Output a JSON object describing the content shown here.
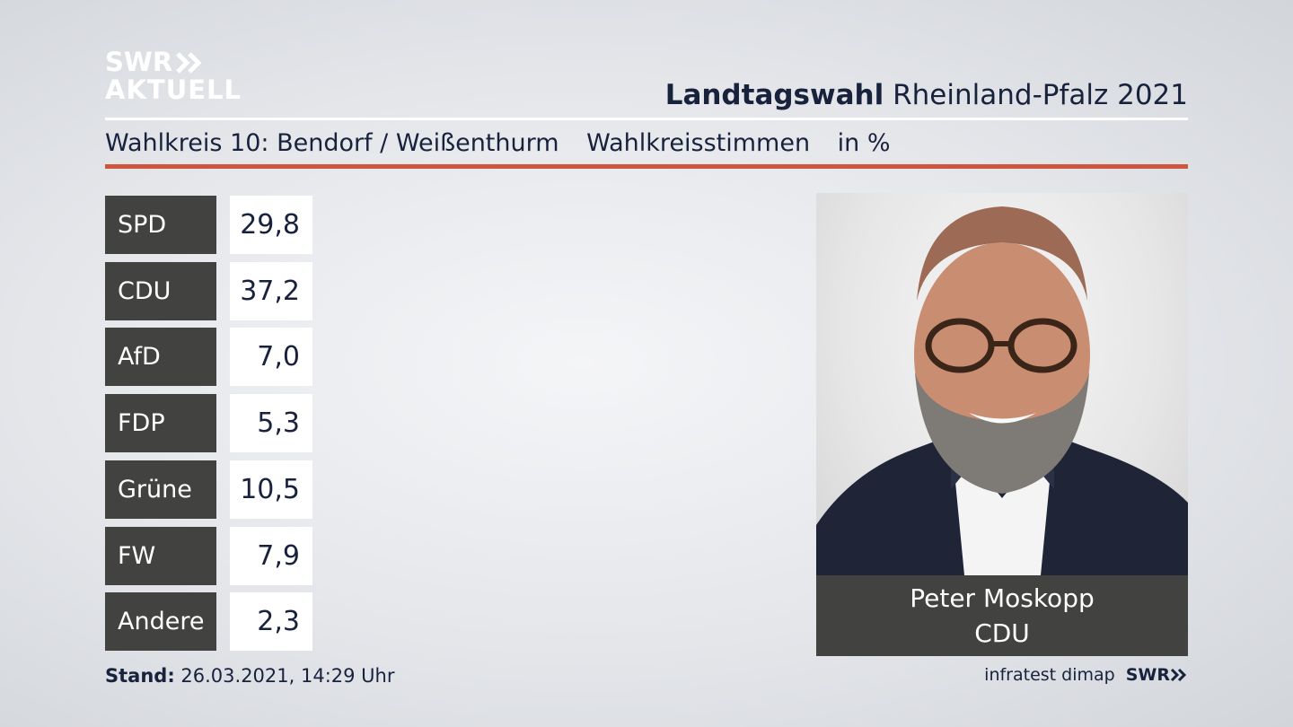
{
  "logo": {
    "line1": "SWR",
    "line2": "AKTUELL"
  },
  "header": {
    "title_bold": "Landtagswahl",
    "title_rest": " Rheinland-Pfalz 2021",
    "wahlkreis": "Wahlkreis 10: Bendorf / Weißenthurm",
    "vote_type": "Wahlkreisstimmen",
    "unit": "in %"
  },
  "chart_data": {
    "type": "table",
    "categories": [
      "SPD",
      "CDU",
      "AfD",
      "FDP",
      "Grüne",
      "FW",
      "Andere"
    ],
    "values": [
      29.8,
      37.2,
      7.0,
      5.3,
      10.5,
      7.9,
      2.3
    ],
    "labels": [
      "29,8",
      "37,2",
      "7,0",
      "5,3",
      "10,5",
      "7,9",
      "2,3"
    ]
  },
  "candidate": {
    "name": "Peter Moskopp",
    "party": "CDU"
  },
  "footer": {
    "stand_label": "Stand:",
    "stand_value": " 26.03.2021, 14:29 Uhr",
    "source": "infratest dimap",
    "source_brand": "SWR"
  },
  "colors": {
    "accent_red": "#d0553e",
    "dark_box": "#424240",
    "text_navy": "#18223d"
  }
}
